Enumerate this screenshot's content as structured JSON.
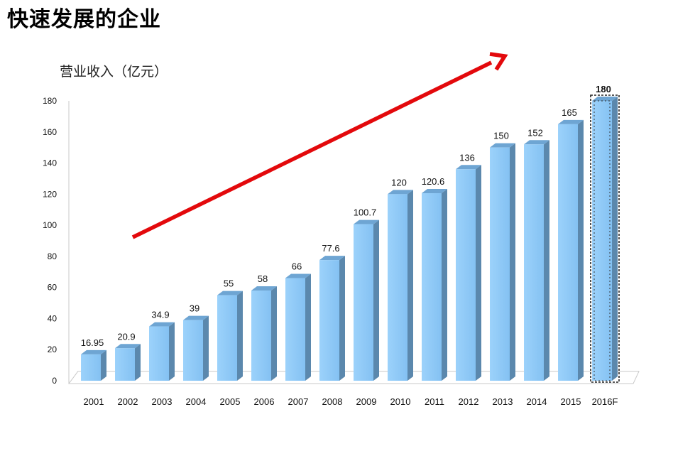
{
  "page": {
    "title": "快速发展的企业"
  },
  "chart_data": {
    "type": "bar",
    "title": "",
    "ylabel": "营业收入（亿元）",
    "xlabel": "",
    "categories": [
      "2001",
      "2002",
      "2003",
      "2004",
      "2005",
      "2006",
      "2007",
      "2008",
      "2009",
      "2010",
      "2011",
      "2012",
      "2013",
      "2014",
      "2015",
      "2016F"
    ],
    "values": [
      16.95,
      20.9,
      34.9,
      39,
      55,
      58,
      66,
      77.6,
      100.7,
      120,
      120.6,
      136,
      150,
      152,
      165,
      180
    ],
    "value_labels": [
      "16.95",
      "20.9",
      "34.9",
      "39",
      "55",
      "58",
      "66",
      "77.6",
      "100.7",
      "120",
      "120.6",
      "136",
      "150",
      "152",
      "165",
      "180"
    ],
    "ylim": [
      0,
      180
    ],
    "yticks": [
      0,
      20,
      40,
      60,
      80,
      100,
      120,
      140,
      160,
      180
    ],
    "grid": false,
    "legend": "none",
    "style_3d": true,
    "highlighted_category": "2016F",
    "annotation": "red upward trend arrow",
    "colors": {
      "bar_front": "#8fcaf7",
      "bar_side": "#5b88ad",
      "bar_top": "#6ea5d3",
      "arrow": "#e3090c"
    }
  }
}
